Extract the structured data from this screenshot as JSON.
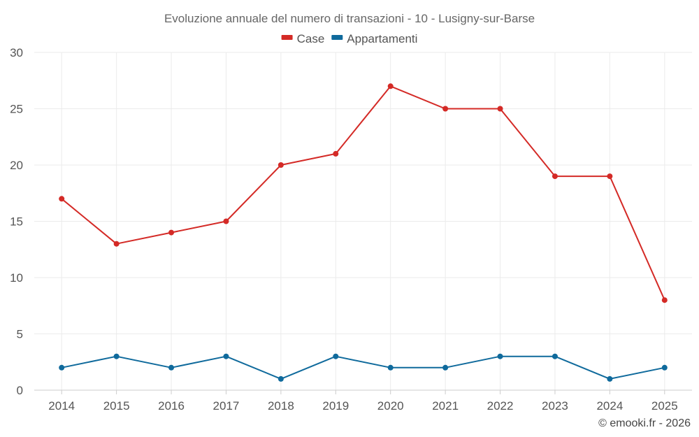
{
  "chart_data": {
    "type": "line",
    "title": "Evoluzione annuale del numero di transazioni - 10 - Lusigny-sur-Barse",
    "categories": [
      "2014",
      "2015",
      "2016",
      "2017",
      "2018",
      "2019",
      "2020",
      "2021",
      "2022",
      "2023",
      "2024",
      "2025"
    ],
    "series": [
      {
        "name": "Case",
        "color": "#d42a26",
        "values": [
          17,
          13,
          14,
          15,
          20,
          21,
          27,
          25,
          25,
          19,
          19,
          8
        ]
      },
      {
        "name": "Appartamenti",
        "color": "#0f6a9c",
        "values": [
          2,
          3,
          2,
          3,
          1,
          3,
          2,
          2,
          3,
          3,
          1,
          2
        ]
      }
    ],
    "ylim": [
      0,
      30
    ],
    "yticks": [
      0,
      5,
      10,
      15,
      20,
      25,
      30
    ],
    "xlabel": "",
    "ylabel": "",
    "grid": true,
    "legend_position": "top-center"
  },
  "credit": "© emooki.fr - 2026"
}
